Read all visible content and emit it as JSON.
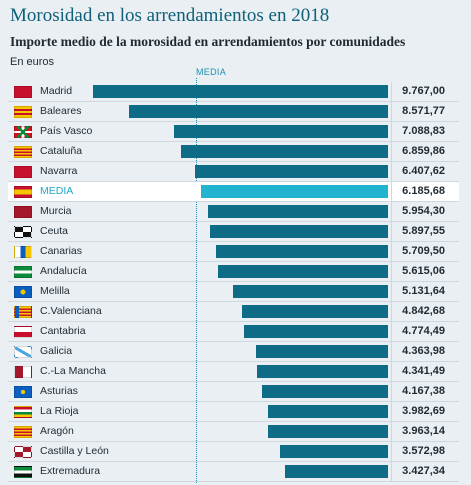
{
  "header": {
    "title": "Morosidad en los arrendamientos en 2018",
    "subtitle": "Importe medio de la morosidad en arrendamientos por comunidades",
    "units": "En euros",
    "media_label": "MEDIA"
  },
  "chart_data": {
    "type": "bar",
    "orientation": "horizontal",
    "title": "Morosidad en los arrendamientos en 2018",
    "subtitle": "Importe medio de la morosidad en arrendamientos por comunidades",
    "unit": "En euros",
    "xlim": [
      0,
      9767.0
    ],
    "reference_line": "MEDIA",
    "highlight": "MEDIA",
    "categories": [
      "Madrid",
      "Baleares",
      "País Vasco",
      "Cataluña",
      "Navarra",
      "MEDIA",
      "Murcia",
      "Ceuta",
      "Canarias",
      "Andalucía",
      "Melilla",
      "C.Valenciana",
      "Cantabria",
      "Galicia",
      "C.-La Mancha",
      "Asturias",
      "La Rioja",
      "Aragón",
      "Castilla y León",
      "Extremadura"
    ],
    "values": [
      9767.0,
      8571.77,
      7088.83,
      6859.86,
      6407.62,
      6185.68,
      5954.3,
      5897.55,
      5709.5,
      5615.06,
      5131.64,
      4842.68,
      4774.49,
      4363.98,
      4341.49,
      4167.38,
      3982.69,
      3963.14,
      3572.98,
      3427.34
    ],
    "value_labels": [
      "9.767,00",
      "8.571,77",
      "7.088,83",
      "6.859,86",
      "6.407,62",
      "6.185,68",
      "5.954,30",
      "5.897,55",
      "5.709,50",
      "5.615,06",
      "5.131,64",
      "4.842,68",
      "4.774,49",
      "4.363,98",
      "4.341,49",
      "4.167,38",
      "3.982,69",
      "3.963,14",
      "3.572,98",
      "3.427,34"
    ],
    "icons": [
      "madrid-flag-icon",
      "baleares-flag-icon",
      "pais-vasco-flag-icon",
      "cataluna-flag-icon",
      "navarra-flag-icon",
      "spain-flag-icon",
      "murcia-flag-icon",
      "ceuta-flag-icon",
      "canarias-flag-icon",
      "andalucia-flag-icon",
      "melilla-flag-icon",
      "valenciana-flag-icon",
      "cantabria-flag-icon",
      "galicia-flag-icon",
      "castilla-la-mancha-flag-icon",
      "asturias-flag-icon",
      "la-rioja-flag-icon",
      "aragon-flag-icon",
      "castilla-y-leon-flag-icon",
      "extremadura-flag-icon"
    ]
  },
  "colors": {
    "bar": "#0f6c86",
    "highlight_bar": "#22b3d0",
    "highlight_label": "#1fa8c9",
    "title": "#0f5f78",
    "background": "#e9eff3"
  }
}
